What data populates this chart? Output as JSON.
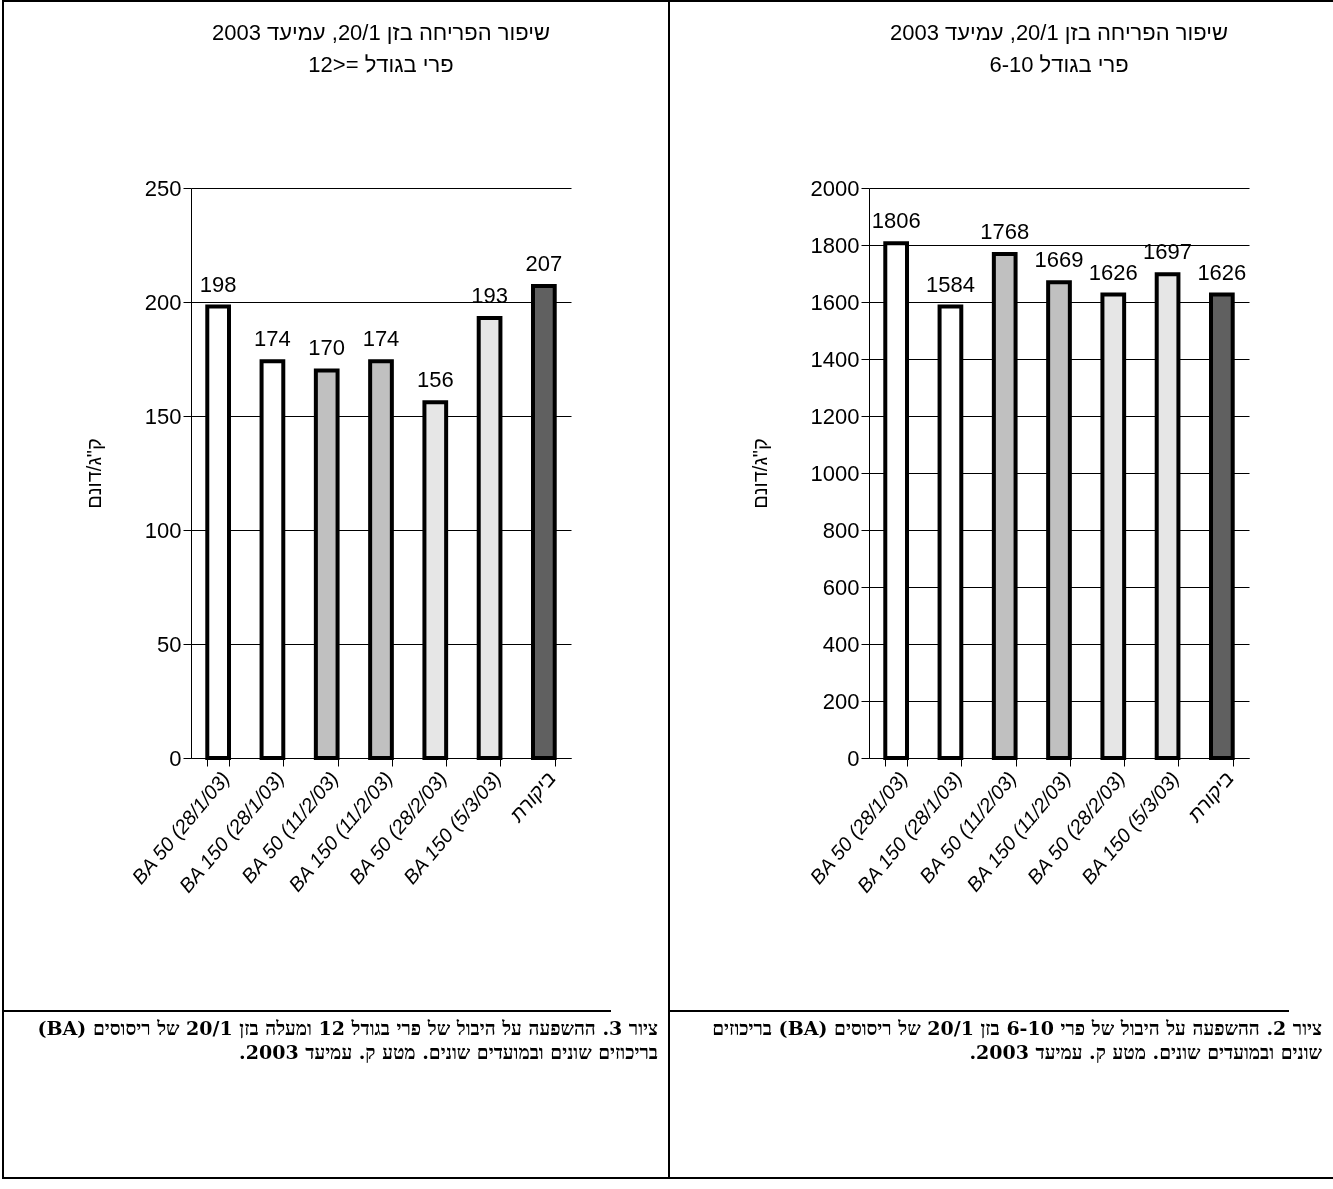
{
  "chart_data": [
    {
      "type": "bar",
      "title": "שיפור הפריחה בזן 20/1, עמיעד 2003",
      "subtitle": "פרי בגודל =<12",
      "ylabel": "ק\"ג/דונם",
      "categories": [
        "BA 50 (28/1/03)",
        "BA 150 (28/1/03)",
        "BA 50 (11/2/03)",
        "BA 150 (11/2/03)",
        "BA 50 (28/2/03)",
        "BA 150 (5/3/03)",
        "ביקורת"
      ],
      "values": [
        198,
        174,
        170,
        174,
        156,
        193,
        207
      ],
      "colors": [
        "#ffffff",
        "#ffffff",
        "#c0c0c0",
        "#c0c0c0",
        "#e6e6e6",
        "#e6e6e6",
        "#606060"
      ],
      "ylim": [
        0,
        250
      ],
      "yticks": [
        0,
        50,
        100,
        150,
        200,
        250
      ],
      "grid": "y",
      "data_labels": true,
      "legend": false,
      "annotations": [
        "ציור 3. ההשפעה על היבול של פרי בגודל 12 ומעלה בזן 20/1 של ריסוסים (BA) בריכוזים שונים ובמועדים שונים. מטע ק. עמיעד 2003."
      ]
    },
    {
      "type": "bar",
      "title": "שיפור הפריחה בזן 20/1, עמיעד 2003",
      "subtitle": "פרי בגודל 6-10",
      "ylabel": "ק\"ג/דונם",
      "categories": [
        "BA 50 (28/1/03)",
        "BA 150 (28/1/03)",
        "BA 50 (11/2/03)",
        "BA 150 (11/2/03)",
        "BA 50 (28/2/03)",
        "BA 150 (5/3/03)",
        "ביקורת"
      ],
      "values": [
        1806,
        1584,
        1768,
        1669,
        1626,
        1697,
        1626
      ],
      "colors": [
        "#ffffff",
        "#ffffff",
        "#c0c0c0",
        "#c0c0c0",
        "#e6e6e6",
        "#e6e6e6",
        "#606060"
      ],
      "ylim": [
        0,
        2000
      ],
      "yticks": [
        0,
        200,
        400,
        600,
        800,
        1000,
        1200,
        1400,
        1600,
        1800,
        2000
      ],
      "grid": "y",
      "data_labels": true,
      "legend": false,
      "annotations": [
        "ציור 2. ההשפעה על היבול של פרי 6-10 בזן 20/1 של ריסוסים (BA) בריכוזים שונים ובמועדים שונים. מטע ק. עמיעד 2003."
      ]
    }
  ]
}
